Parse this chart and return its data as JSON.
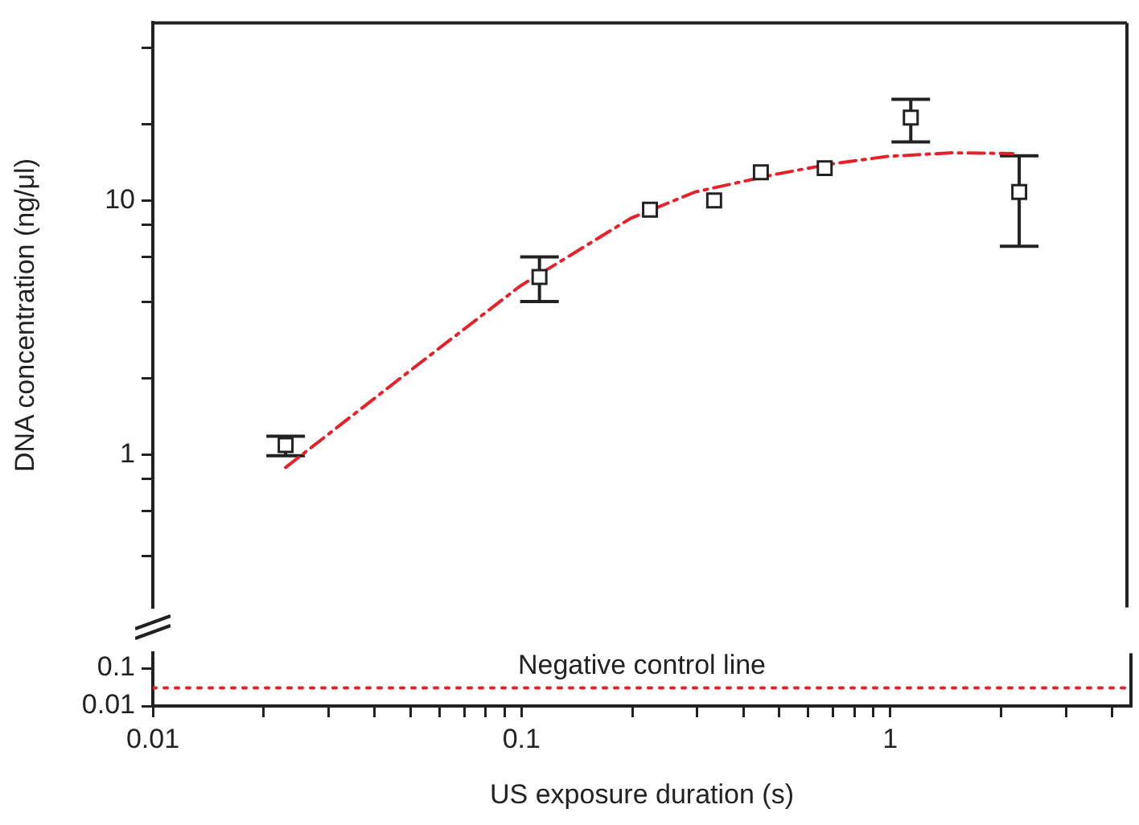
{
  "chart_data": [
    {
      "type": "scatter",
      "ylabel": "DNA concentration (ng/μl)",
      "log": "xy",
      "xlim": [
        0.01,
        4.5
      ],
      "ylim": [
        0.25,
        50
      ],
      "yticks": [
        {
          "value": 0.4,
          "label": null
        },
        {
          "value": 0.6,
          "label": null
        },
        {
          "value": 0.8,
          "label": null
        },
        1,
        {
          "value": 2,
          "label": null
        },
        {
          "value": 4,
          "label": null
        },
        {
          "value": 6,
          "label": null
        },
        {
          "value": 8,
          "label": null
        },
        10,
        {
          "value": 20,
          "label": null
        },
        {
          "value": 40,
          "label": null
        }
      ],
      "tick_labels": "y",
      "marker": "square",
      "series": [
        {
          "color": "#222222",
          "x": [
            0.023,
            0.113,
            0.226,
            0.338,
            0.453,
            0.676,
            1.16,
            2.29
          ],
          "values": [
            1.09,
            5,
            9.2,
            10,
            12.9,
            13.4,
            21.2,
            10.8
          ],
          "errors": [
            [
              0.99,
              1.18
            ],
            [
              4,
              6
            ],
            null,
            null,
            null,
            null,
            [
              17,
              25
            ],
            [
              6.6,
              15
            ]
          ]
        },
        {
          "type": "line",
          "color": "#e8202a",
          "line_style": "dashed",
          "marker": "none",
          "x": [
            0.023,
            0.05,
            0.1,
            0.2,
            0.3,
            0.5,
            0.7,
            1,
            1.5,
            2.2
          ],
          "values": [
            0.89,
            2.13,
            4.6,
            8.5,
            10.8,
            12.7,
            13.9,
            14.9,
            15.4,
            15.3
          ]
        }
      ]
    },
    {
      "type": "line",
      "xlabel": "US exposure duration (s)",
      "log": "xy",
      "xlim": [
        0.01,
        4.5
      ],
      "ylim": [
        0.01,
        0.25
      ],
      "xticks": [
        0.01,
        {
          "value": 0.02,
          "label": null
        },
        {
          "value": 0.03,
          "label": null
        },
        {
          "value": 0.04,
          "label": null
        },
        {
          "value": 0.05,
          "label": null
        },
        {
          "value": 0.06,
          "label": null
        },
        {
          "value": 0.07,
          "label": null
        },
        {
          "value": 0.08,
          "label": null
        },
        {
          "value": 0.09,
          "label": null
        },
        0.1,
        {
          "value": 0.2,
          "label": null
        },
        {
          "value": 0.3,
          "label": null
        },
        {
          "value": 0.4,
          "label": null
        },
        {
          "value": 0.5,
          "label": null
        },
        {
          "value": 0.6,
          "label": null
        },
        {
          "value": 0.7,
          "label": null
        },
        {
          "value": 0.8,
          "label": null
        },
        {
          "value": 0.9,
          "label": null
        },
        1,
        {
          "value": 2,
          "label": null
        },
        {
          "value": 3,
          "label": null
        },
        {
          "value": 4,
          "label": null
        }
      ],
      "yticks": [
        0.01,
        0.1
      ],
      "series": [
        {
          "name": "Negative control line",
          "color": "#e8202a",
          "line_style": "dotted",
          "marker": "none",
          "x": [
            0.01,
            4.5
          ],
          "values": [
            0.03,
            0.03
          ]
        }
      ]
    }
  ]
}
